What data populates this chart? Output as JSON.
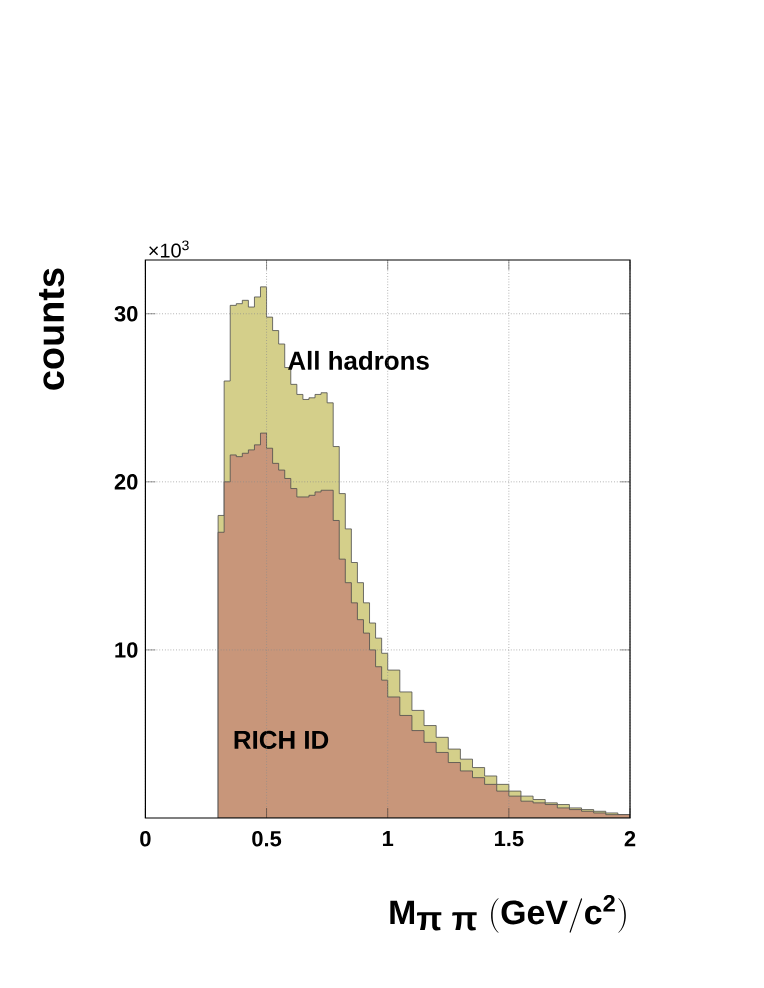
{
  "chart_data": {
    "type": "histogram",
    "xlabel": "\\mathbf{M_{\\mbox{π π}}\\ (GeV/c^{2})}",
    "ylabel": "counts",
    "annotations": [
      "×10$^{3}$"
    ],
    "bins": [
      0.3,
      0.325,
      0.35,
      0.375,
      0.4,
      0.425,
      0.45,
      0.475,
      0.5,
      0.525,
      0.55,
      0.575,
      0.6,
      0.625,
      0.65,
      0.675,
      0.7,
      0.725,
      0.75,
      0.775,
      0.8,
      0.825,
      0.85,
      0.875,
      0.9,
      0.925,
      0.95,
      0.975,
      1.0,
      1.05,
      1.1,
      1.15,
      1.2,
      1.25,
      1.3,
      1.35,
      1.4,
      1.45,
      1.5,
      1.55,
      1.6,
      1.65,
      1.7,
      1.75,
      1.8,
      1.85,
      1.9,
      1.95,
      2.0
    ],
    "series": [
      {
        "name": "All hadrons",
        "color": "#d4cf8a",
        "values": [
          18,
          26,
          30.5,
          30.6,
          30.8,
          30.4,
          31,
          31.6,
          29.8,
          29,
          28.2,
          26.8,
          25.8,
          25.2,
          24.9,
          25,
          25.2,
          25.3,
          24.7,
          22.1,
          19.3,
          17.2,
          15.2,
          14.0,
          12.8,
          11.6,
          10.7,
          9.8,
          8.8,
          7.5,
          6.4,
          5.5,
          4.8,
          4.1,
          3.5,
          3.0,
          2.5,
          2.0,
          1.6,
          1.3,
          1.1,
          0.9,
          0.8,
          0.6,
          0.5,
          0.4,
          0.3,
          0.2
        ]
      },
      {
        "name": "RICH ID",
        "color": "#c8967a",
        "values": [
          17,
          20,
          21.6,
          21.5,
          21.7,
          21.9,
          22.2,
          22.9,
          22,
          21.1,
          20.7,
          20.2,
          19.6,
          19.1,
          19.1,
          19.2,
          19.4,
          19.5,
          19.5,
          17.7,
          15.4,
          14.0,
          12.8,
          11.8,
          11.0,
          10.0,
          9.0,
          8.2,
          7.2,
          6.1,
          5.2,
          4.5,
          3.9,
          3.3,
          2.8,
          2.4,
          2.0,
          1.6,
          1.3,
          1.0,
          0.9,
          0.8,
          0.6,
          0.5,
          0.4,
          0.3,
          0.2,
          0.2
        ]
      }
    ],
    "xlim": [
      0,
      2
    ],
    "ylim": [
      0,
      33.2
    ],
    "xticks": [
      0,
      0.5,
      1,
      1.5,
      2
    ],
    "yticks": [
      10,
      20,
      30
    ],
    "grid": true
  }
}
